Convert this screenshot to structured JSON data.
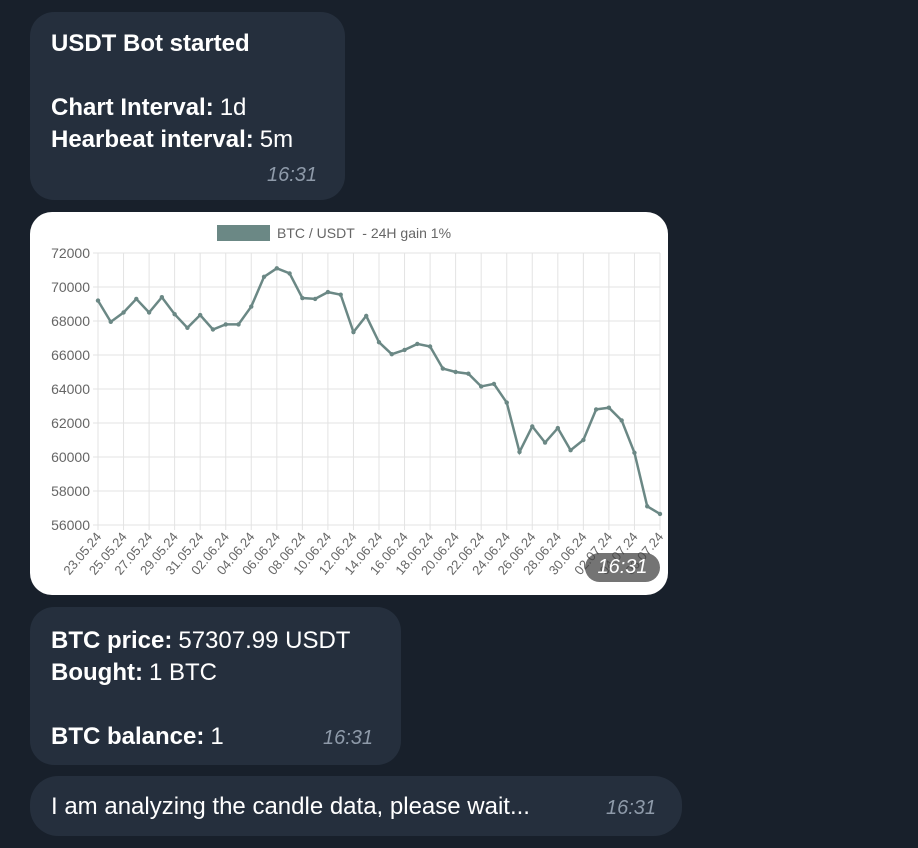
{
  "messages": [
    {
      "title": "USDT Bot started",
      "lines": [
        {
          "label": "Chart Interval:",
          "value": "1d"
        },
        {
          "label": "Hearbeat interval:",
          "value": "5m"
        }
      ],
      "time": "16:31"
    },
    {
      "time": "16:31"
    },
    {
      "lines": [
        {
          "label": "BTC price:",
          "value": "57307.99 USDT"
        },
        {
          "label": "Bought:",
          "value": "1 BTC"
        },
        {
          "label": "BTC balance:",
          "value": "1"
        }
      ],
      "time": "16:31"
    },
    {
      "text": "I am analyzing the candle data, please wait...",
      "time": "16:31"
    }
  ],
  "chart_data": {
    "type": "line",
    "categories": [
      "23.05.24",
      null,
      "25.05.24",
      null,
      "27.05.24",
      null,
      "29.05.24",
      null,
      "31.05.24",
      null,
      "02.06.24",
      null,
      "04.06.24",
      null,
      "06.06.24",
      null,
      "08.06.24",
      null,
      "10.06.24",
      null,
      "12.06.24",
      null,
      "14.06.24",
      null,
      "16.06.24",
      null,
      "18.06.24",
      null,
      "20.06.24",
      null,
      "22.06.24",
      null,
      "24.06.24",
      null,
      "26.06.24",
      null,
      "28.06.24",
      null,
      "30.06.24",
      null,
      "02.07.24",
      null,
      "04.07.24",
      null,
      "06.07.24"
    ],
    "series": [
      {
        "name": "BTC / USDT  - 24H gain 1%",
        "color": "#6b8885",
        "values": [
          69200,
          67950,
          68500,
          69300,
          68500,
          69400,
          68400,
          67600,
          68350,
          67500,
          67800,
          67800,
          68850,
          70600,
          71100,
          70800,
          69350,
          69300,
          69700,
          69550,
          67350,
          68300,
          66750,
          66050,
          66300,
          66650,
          66500,
          65200,
          65000,
          64900,
          64150,
          64300,
          63200,
          60300,
          61800,
          60850,
          61700,
          60400,
          61000,
          62800,
          62900,
          62150,
          60250,
          57100,
          56650
        ]
      }
    ],
    "ylim": [
      56000,
      72000
    ],
    "yticks": [
      56000,
      58000,
      60000,
      62000,
      64000,
      66000,
      68000,
      70000,
      72000
    ],
    "grid": true,
    "legend": "top"
  }
}
